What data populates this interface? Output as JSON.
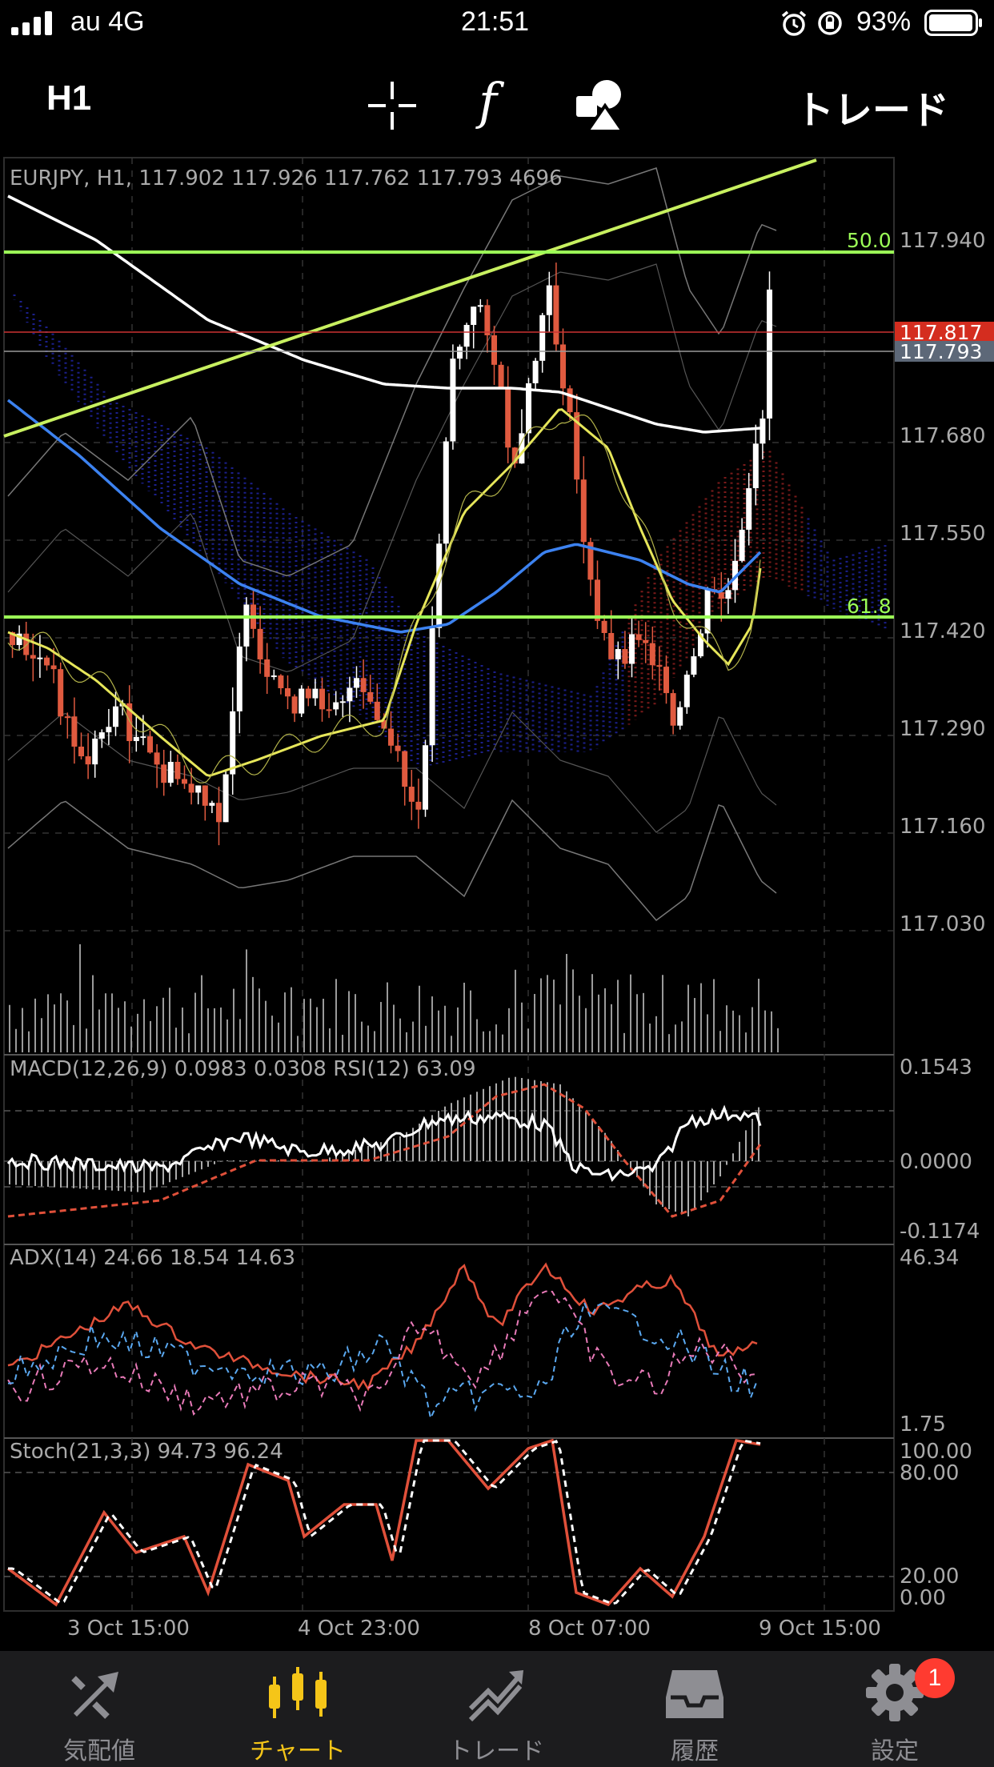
{
  "status_bar": {
    "carrier": "au 4G",
    "time": "21:51",
    "battery": "93%"
  },
  "toolbar": {
    "timeframe": "H1",
    "trade_label": "トレード",
    "function_symbol": "f"
  },
  "main_chart": {
    "info": "EURJPY, H1, 117.902 117.926 117.762 117.793 4696",
    "price_ticks": [
      "117.940",
      "117.680",
      "117.550",
      "117.420",
      "117.290",
      "117.160",
      "117.030"
    ],
    "fib_50": "50.0",
    "fib_618": "61.8",
    "last_price_red": "117.817",
    "last_price_grey": "117.793"
  },
  "macd": {
    "info": "MACD(12,26,9) 0.0983 0.0308 RSI(12) 63.09",
    "ticks": [
      "0.1543",
      "0.0000",
      "-0.1174"
    ]
  },
  "adx": {
    "info": "ADX(14) 24.66 18.54 14.63",
    "ticks": [
      "46.34",
      "1.75"
    ]
  },
  "stoch": {
    "info": "Stoch(21,3,3) 94.73 96.24",
    "ticks": [
      "100.00",
      "80.00",
      "20.00",
      "0.00"
    ]
  },
  "x_axis": [
    "3 Oct 15:00",
    "4 Oct 23:00",
    "8 Oct 07:00",
    "9 Oct 15:00"
  ],
  "tabs": [
    {
      "label": "気配値",
      "icon": "quotes-icon"
    },
    {
      "label": "チャート",
      "icon": "chart-icon"
    },
    {
      "label": "トレード",
      "icon": "trade-icon"
    },
    {
      "label": "履歴",
      "icon": "history-icon"
    },
    {
      "label": "設定",
      "icon": "settings-icon"
    }
  ],
  "settings_badge": "1",
  "colors": {
    "accent": "#f5c518",
    "bull": "#ffffff",
    "bear": "#e05a3f",
    "fib": "#9cff57",
    "ma_blue": "#3c82f0",
    "ma_yellow": "#e6e65a"
  }
}
